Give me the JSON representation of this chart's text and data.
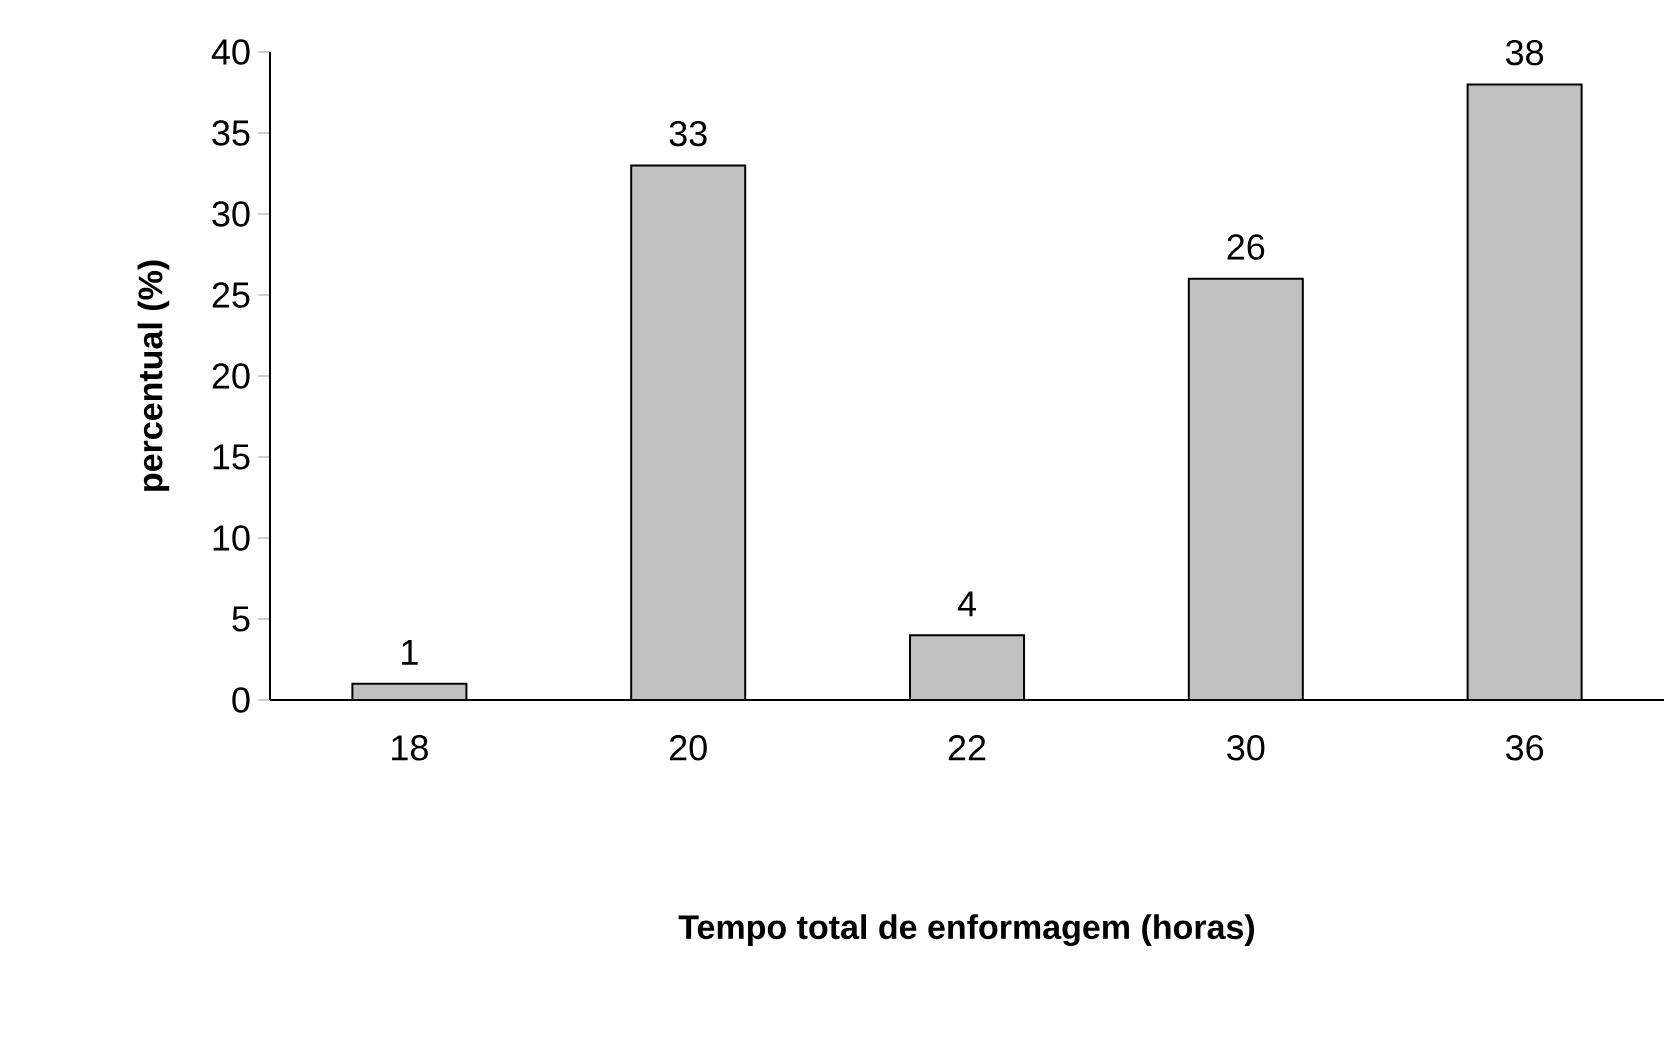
{
  "chart_data": {
    "type": "bar",
    "xlabel": "Tempo total de enformagem (horas)",
    "ylabel": "percentual (%)",
    "categories": [
      "18",
      "20",
      "22",
      "30",
      "36"
    ],
    "values": [
      1,
      33,
      4,
      26,
      38
    ],
    "color": "#c0c0c0",
    "ylim": [
      0,
      40
    ],
    "yticks": [
      0,
      5,
      10,
      15,
      20,
      25,
      30,
      35,
      40
    ],
    "data_labels": true,
    "grid": false
  }
}
